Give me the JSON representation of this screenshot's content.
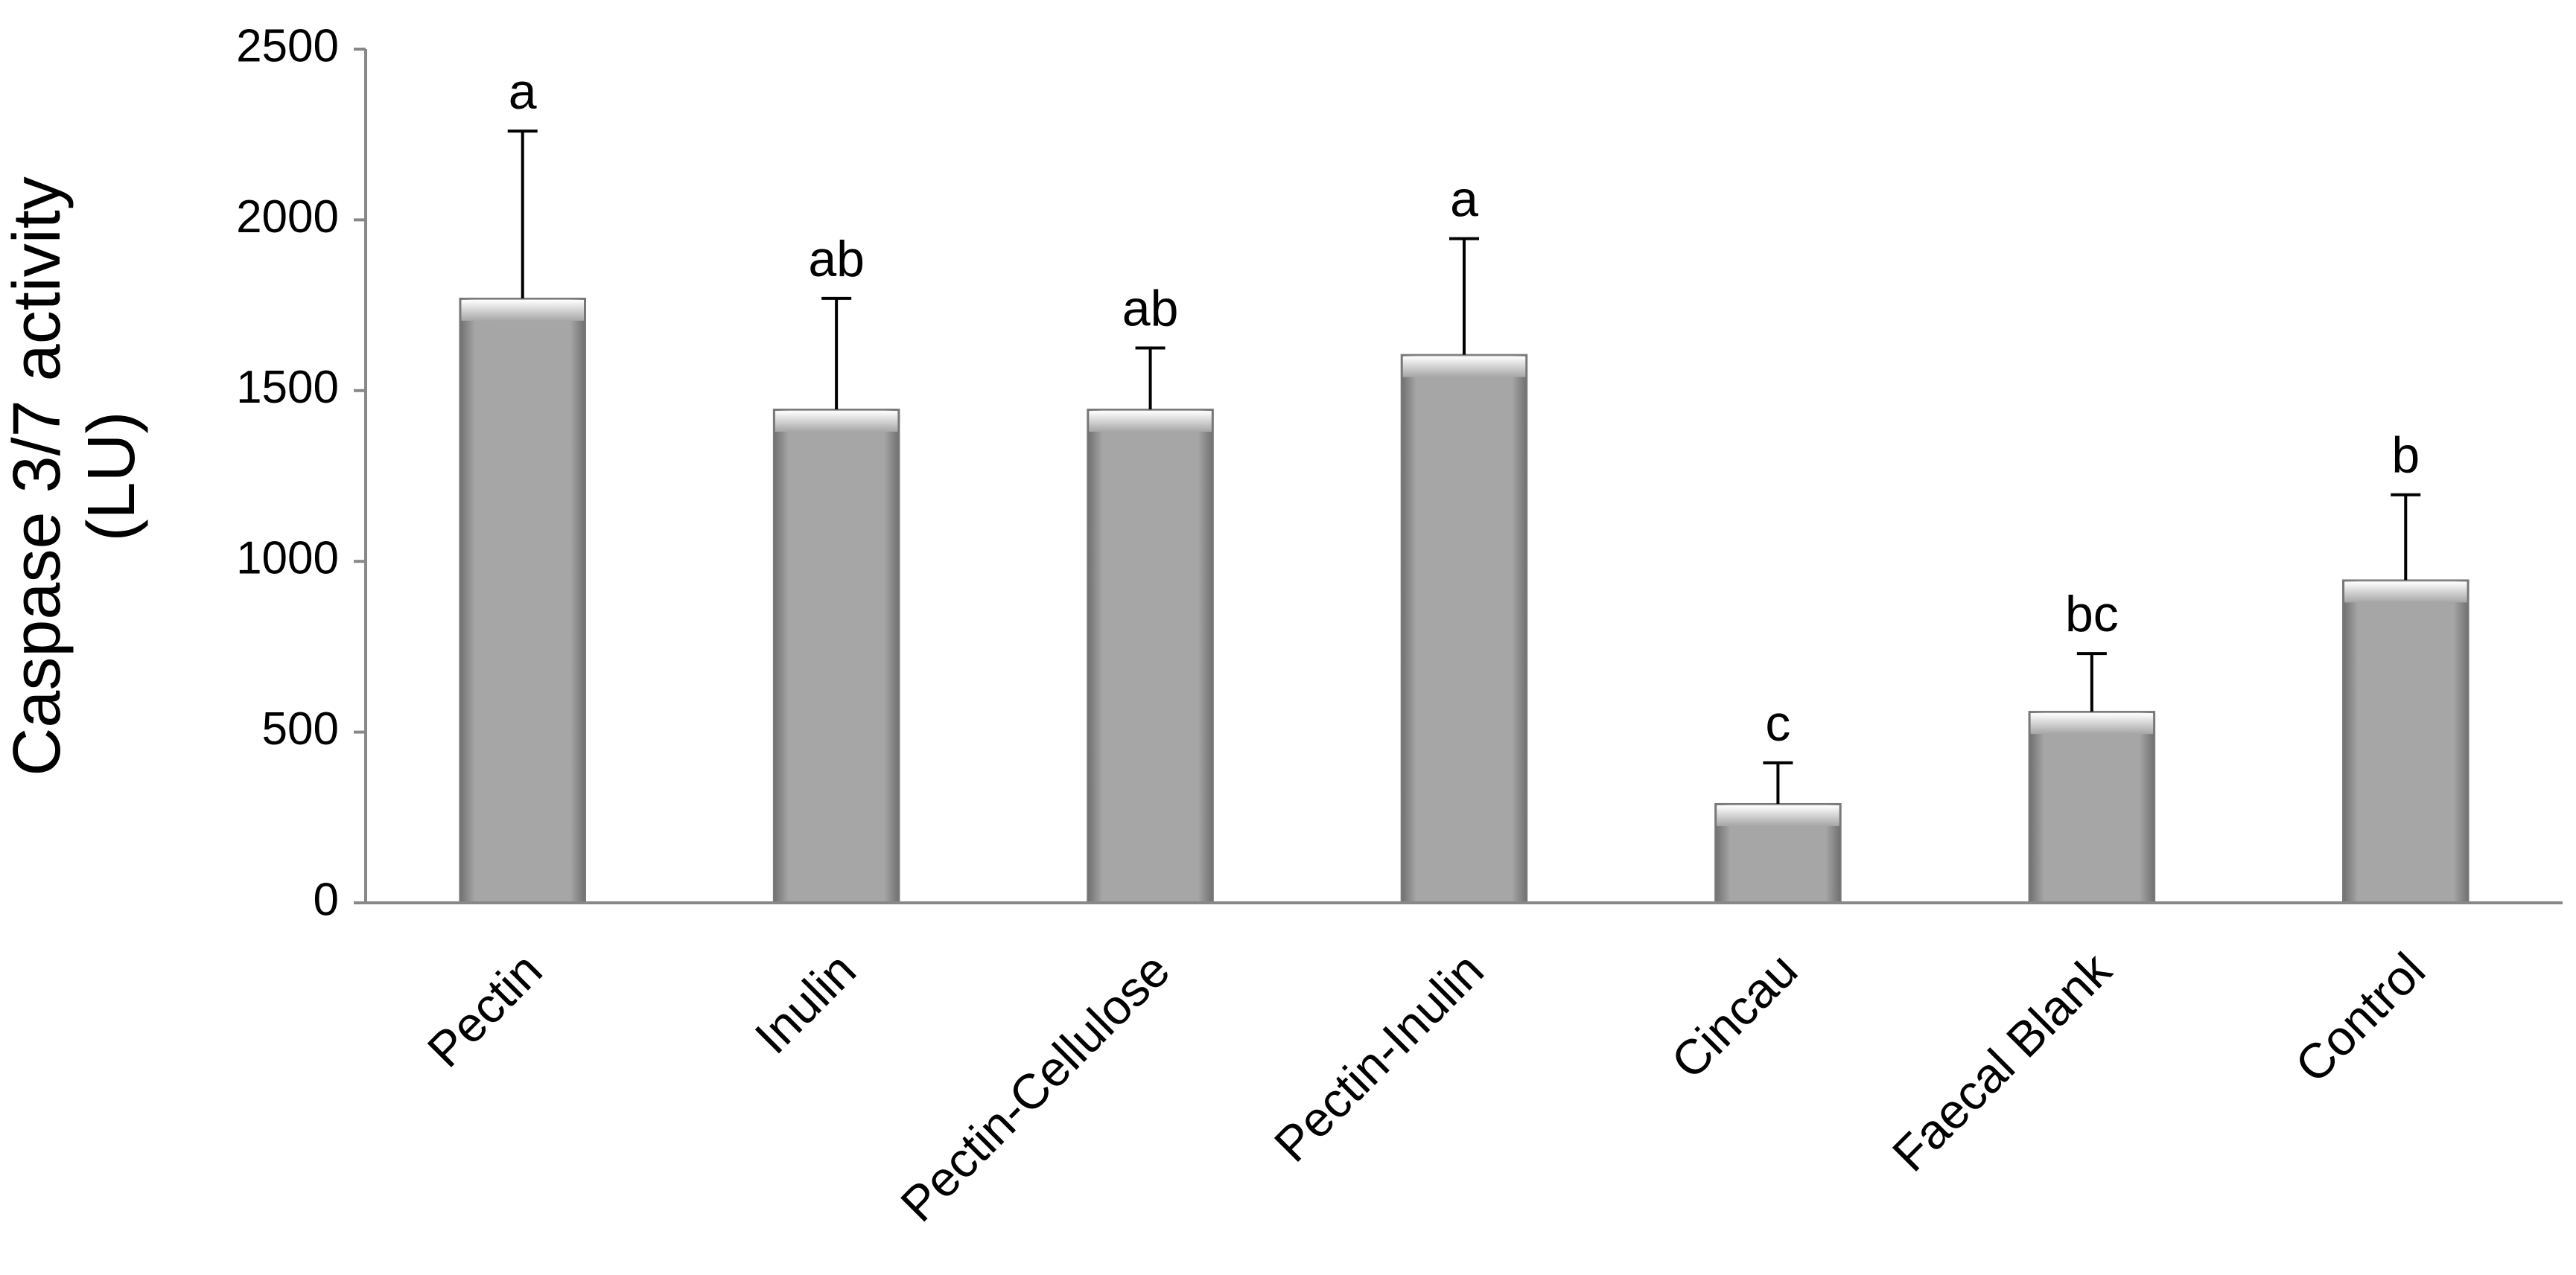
{
  "chart_data": {
    "type": "bar",
    "y_label": [
      "Caspase 3/7 activity",
      "(LU)"
    ],
    "categories": [
      "Pectin",
      "Inulin",
      "Pectin-Cellulose",
      "Pectin-Inulin",
      "Cincau",
      "Faecal Blank",
      "Control"
    ],
    "values": [
      1770,
      1445,
      1445,
      1605,
      290,
      560,
      945
    ],
    "errors": [
      490,
      325,
      180,
      340,
      120,
      170,
      250
    ],
    "annotations": [
      "a",
      "ab",
      "ab",
      "a",
      "c",
      "bc",
      "b"
    ],
    "color": "#a6a6a6",
    "ylim": [
      0,
      2500
    ],
    "yticks": [
      0,
      500,
      1000,
      1500,
      2000,
      2500
    ],
    "grid": false
  }
}
